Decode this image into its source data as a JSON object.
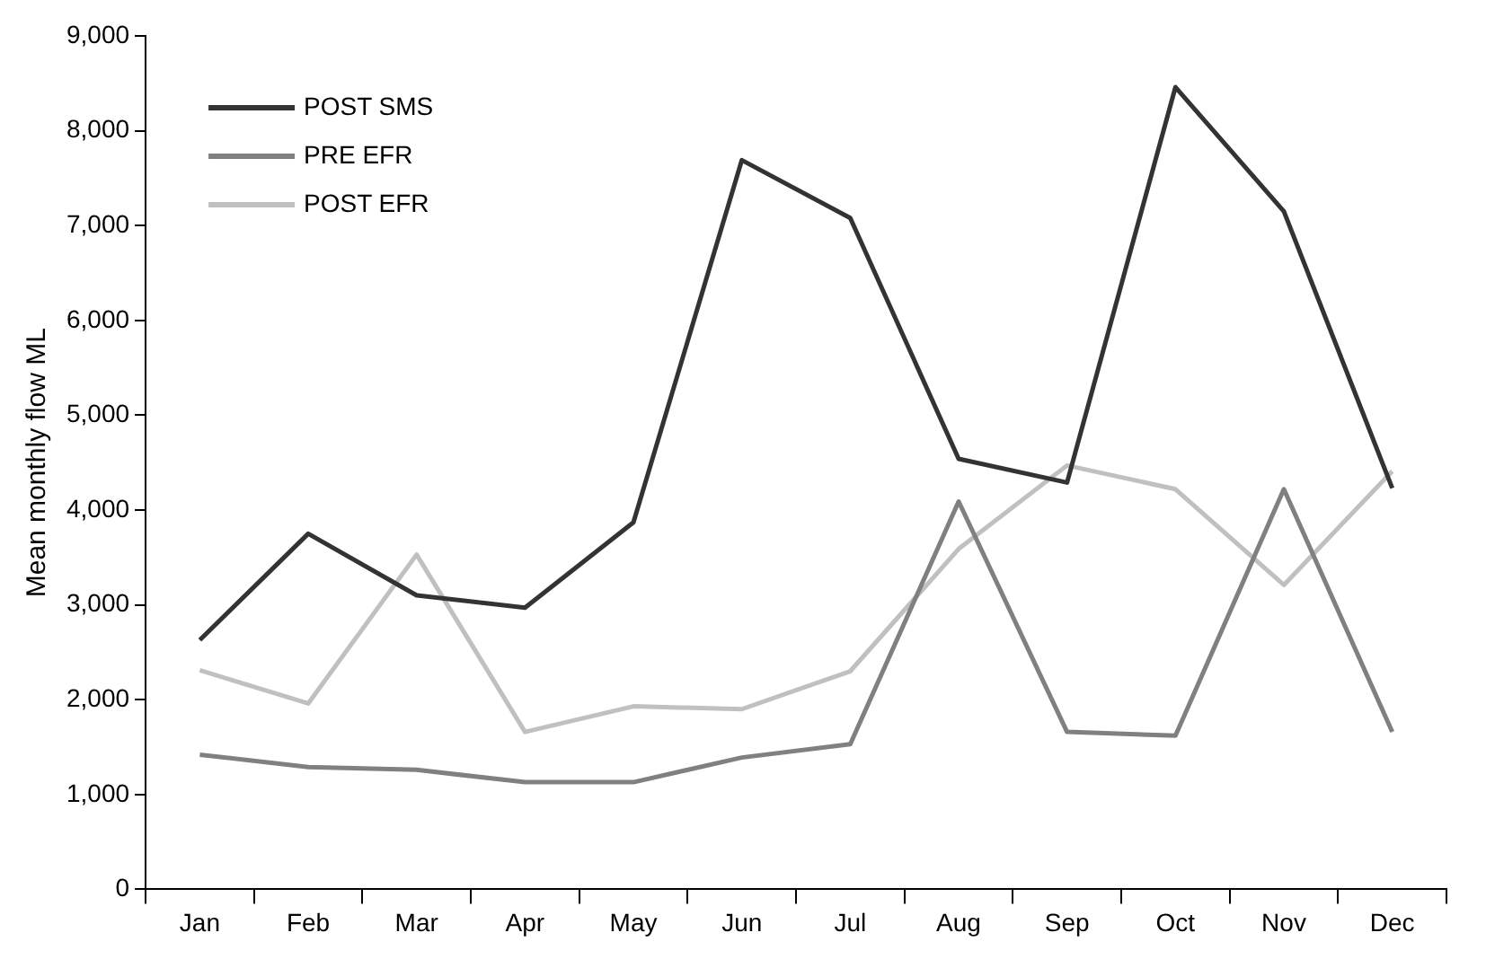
{
  "chart_data": {
    "type": "line",
    "ylabel": "Mean monthly flow ML",
    "categories": [
      "Jan",
      "Feb",
      "Mar",
      "Apr",
      "May",
      "Jun",
      "Jul",
      "Aug",
      "Sep",
      "Oct",
      "Nov",
      "Dec"
    ],
    "series": [
      {
        "name": "POST SMS",
        "color": "#333333",
        "values": [
          2630,
          3750,
          3100,
          2970,
          3870,
          7690,
          7080,
          4540,
          4290,
          8460,
          7150,
          4230
        ]
      },
      {
        "name": "PRE EFR",
        "color": "#808080",
        "values": [
          1420,
          1290,
          1260,
          1130,
          1130,
          1390,
          1530,
          4090,
          1660,
          1620,
          4220,
          1660
        ]
      },
      {
        "name": "POST EFR",
        "color": "#c0c0c0",
        "values": [
          2310,
          1960,
          3530,
          1660,
          1930,
          1900,
          2300,
          3590,
          4470,
          4220,
          3210,
          4410
        ]
      }
    ],
    "ylim": [
      0,
      9000
    ],
    "yticks": [
      {
        "value": 0,
        "label": "0"
      },
      {
        "value": 1000,
        "label": "1,000"
      },
      {
        "value": 2000,
        "label": "2,000"
      },
      {
        "value": 3000,
        "label": "3,000"
      },
      {
        "value": 4000,
        "label": "4,000"
      },
      {
        "value": 5000,
        "label": "5,000"
      },
      {
        "value": 6000,
        "label": "6,000"
      },
      {
        "value": 7000,
        "label": "7,000"
      },
      {
        "value": 8000,
        "label": "8,000"
      },
      {
        "value": 9000,
        "label": "9,000"
      }
    ],
    "grid": false,
    "legend": "top left",
    "marker": "none",
    "line_style": "solid"
  }
}
